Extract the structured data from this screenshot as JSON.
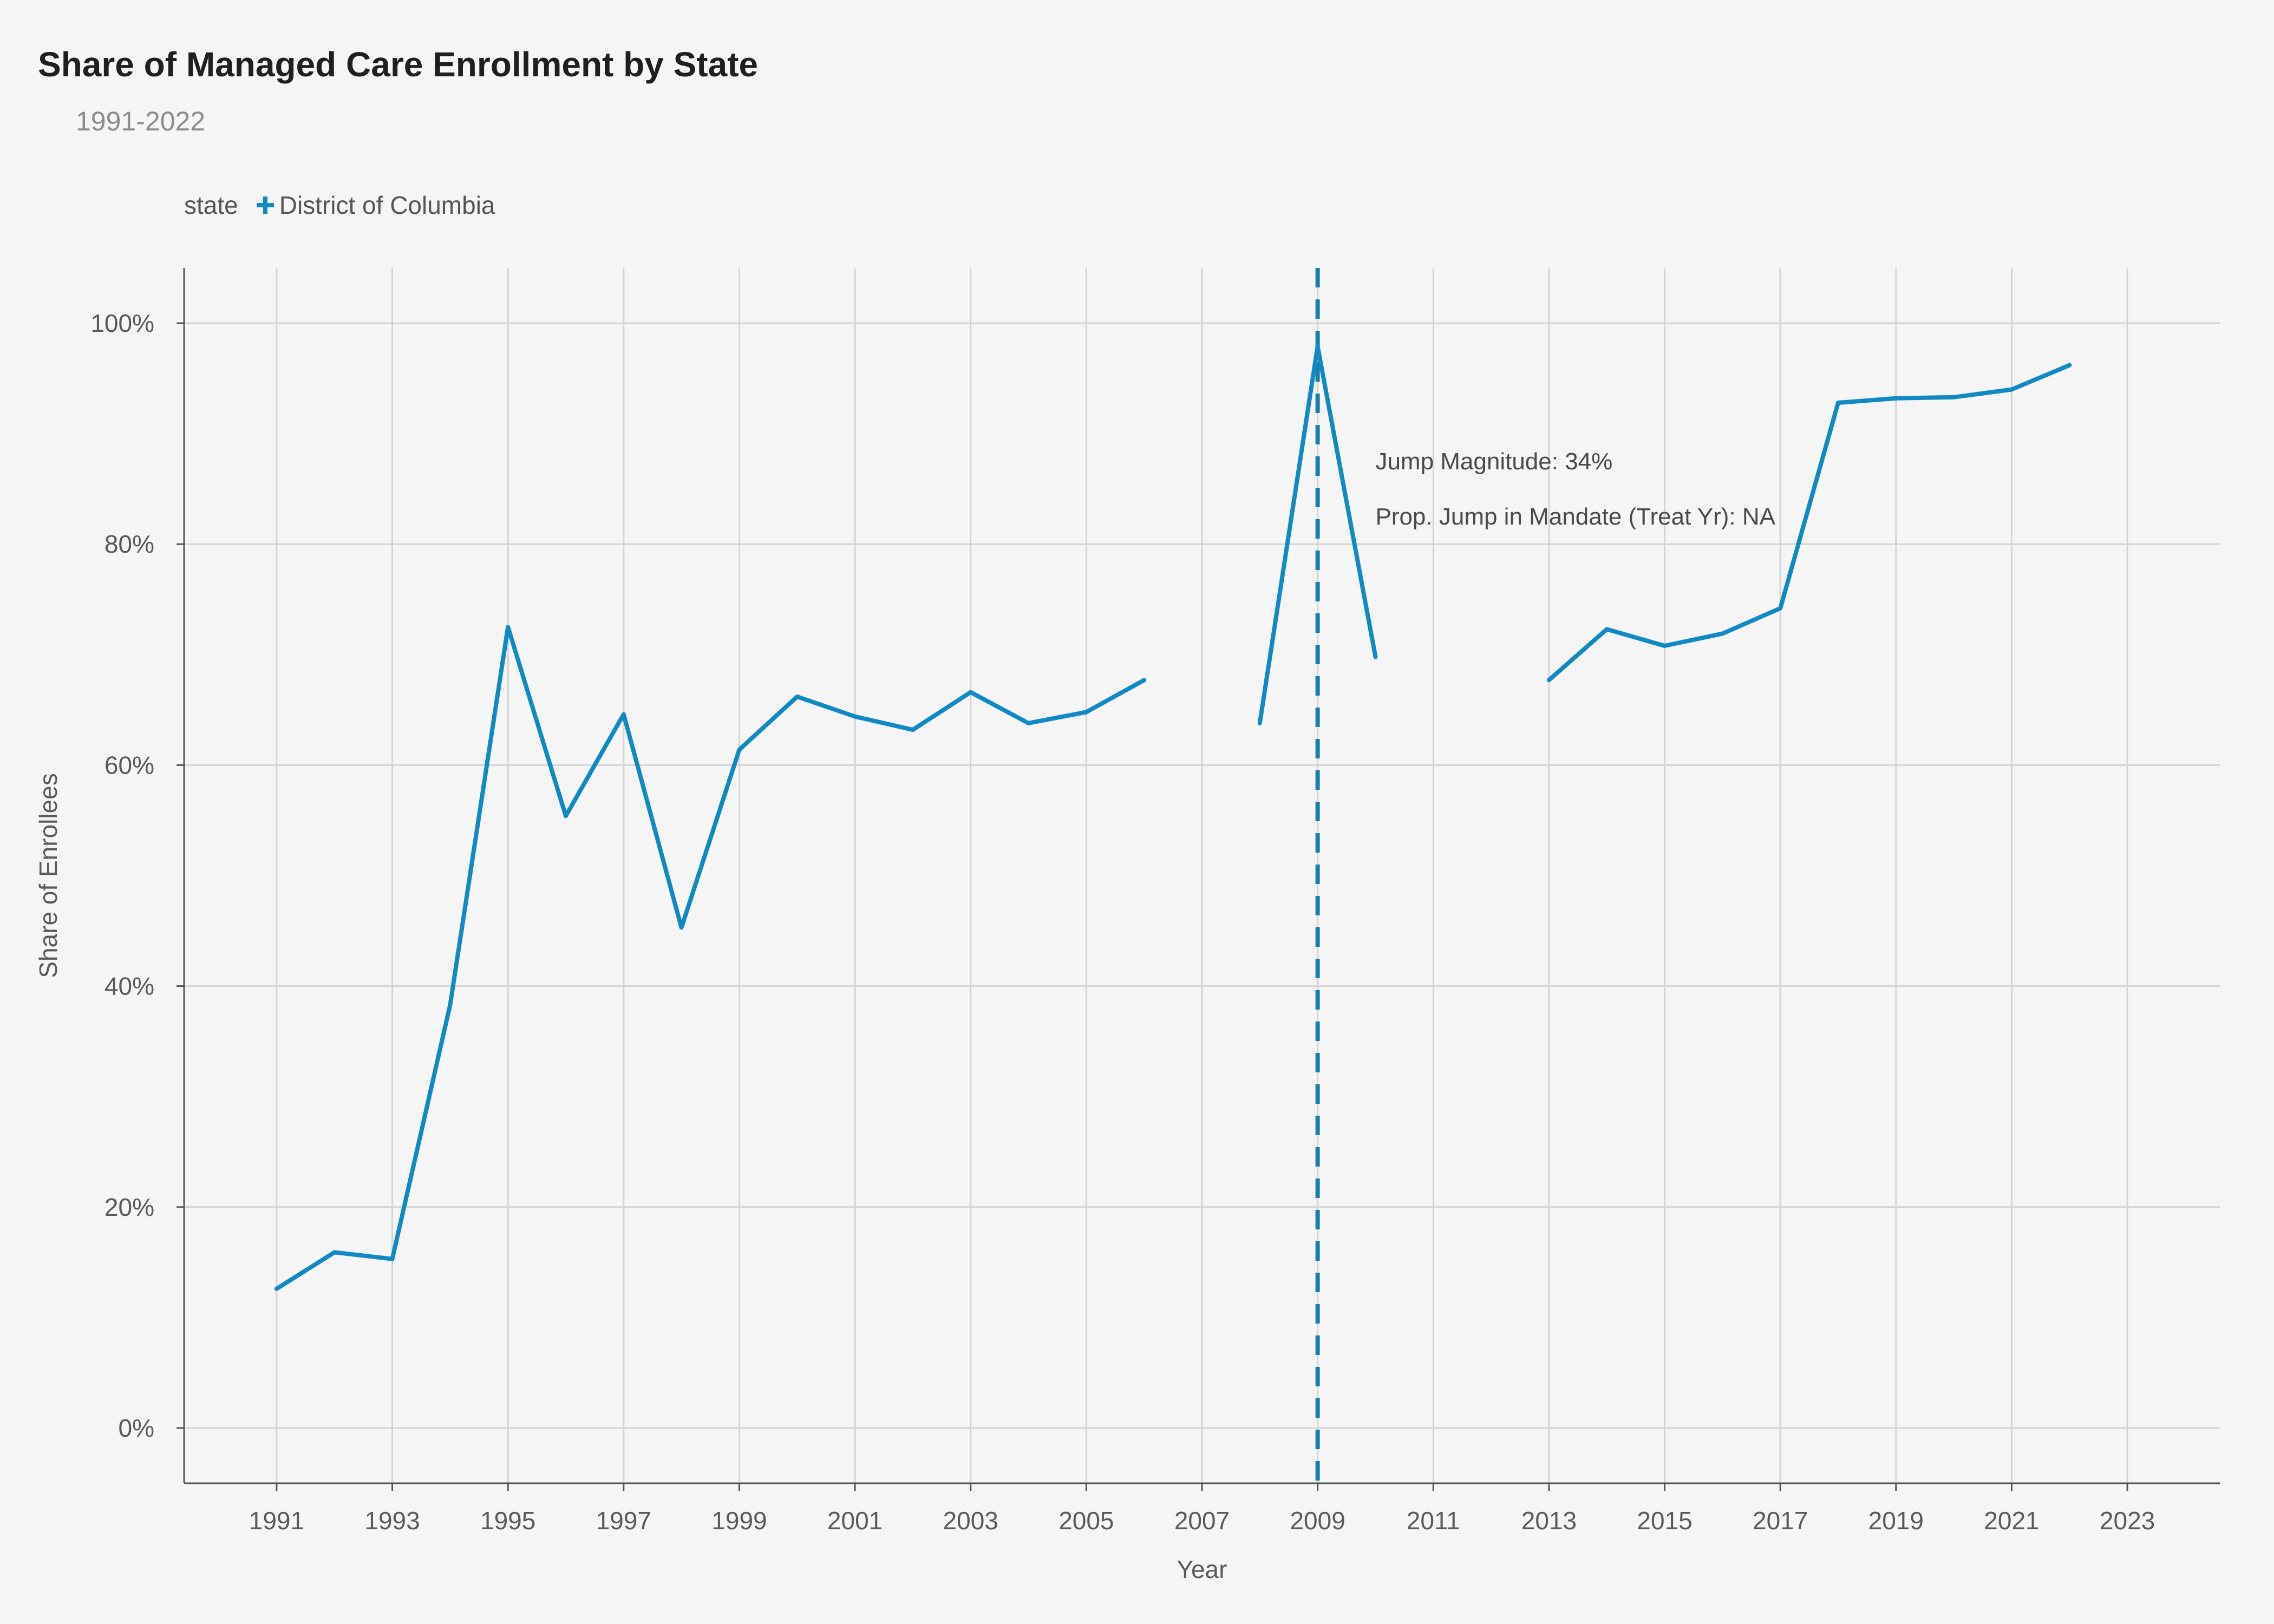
{
  "chart_data": {
    "type": "line",
    "title": "Share of Managed Care Enrollment by State",
    "subtitle": "1991-2022",
    "xlabel": "Year",
    "ylabel": "Share of Enrollees",
    "legend_title": "state",
    "legend_placement": "top-left",
    "grid": true,
    "xlim": [
      1989.4,
      2024.6
    ],
    "ylim": [
      -5,
      105
    ],
    "x_ticks": [
      1991,
      1993,
      1995,
      1997,
      1999,
      2001,
      2003,
      2005,
      2007,
      2009,
      2011,
      2013,
      2015,
      2017,
      2019,
      2021,
      2023
    ],
    "y_ticks": [
      0,
      20,
      40,
      60,
      80,
      100
    ],
    "y_tick_labels": [
      "0%",
      "20%",
      "40%",
      "60%",
      "80%",
      "100%"
    ],
    "series": [
      {
        "name": "District of Columbia",
        "color": "#1289c3",
        "x": [
          1991,
          1992,
          1993,
          1994,
          1995,
          1996,
          1997,
          1998,
          1999,
          2000,
          2001,
          2002,
          2003,
          2004,
          2005,
          2006,
          2007,
          2008,
          2009,
          2010,
          2011,
          2012,
          2013,
          2014,
          2015,
          2016,
          2017,
          2018,
          2019,
          2020,
          2021,
          2022
        ],
        "y": [
          12.6,
          15.9,
          15.3,
          38.3,
          72.5,
          55.4,
          64.6,
          45.3,
          61.4,
          66.2,
          64.4,
          63.2,
          66.6,
          63.8,
          64.8,
          67.7,
          null,
          63.8,
          97.9,
          69.8,
          null,
          null,
          67.7,
          72.3,
          70.8,
          71.9,
          74.2,
          92.8,
          93.2,
          93.3,
          94.0,
          96.2
        ]
      }
    ],
    "reference_line": {
      "x": 2009,
      "style": "dashed",
      "color": "#1a7fa8"
    },
    "annotations": [
      {
        "text": "Jump Magnitude: 34%",
        "x": 2010,
        "y": 87.5
      },
      {
        "text": "Prop. Jump in Mandate (Treat Yr): NA",
        "x": 2010,
        "y": 82.5
      }
    ]
  }
}
